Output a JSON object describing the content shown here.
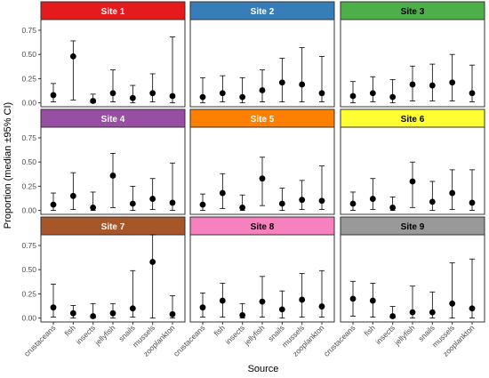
{
  "chart_data": {
    "type": "scatter",
    "layout": "facet-grid",
    "xlabel": "Source",
    "ylabel": "Proportion (median ±95% CI)",
    "categories": [
      "crustaceans",
      "fish",
      "insects",
      "jellyfish",
      "snails",
      "mussels",
      "zooplankton"
    ],
    "yticks": [
      "0.00",
      "0.25",
      "0.50",
      "0.75"
    ],
    "ylim": [
      -0.04,
      0.86
    ],
    "grid": false,
    "colors": {
      "point": "#000000",
      "panel_border": "#333333",
      "strip_border": "#333333",
      "tick": "#4d4d4d"
    },
    "panels": [
      {
        "title": "Site 1",
        "strip_color": "#E41A1C",
        "strip_text_color": "#ffffff",
        "median": [
          0.08,
          0.48,
          0.02,
          0.1,
          0.05,
          0.1,
          0.07
        ],
        "lower": [
          0.01,
          0.03,
          0.0,
          0.01,
          0.0,
          0.01,
          0.0
        ],
        "upper": [
          0.2,
          0.64,
          0.09,
          0.34,
          0.18,
          0.3,
          0.68
        ]
      },
      {
        "title": "Site 2",
        "strip_color": "#377EB8",
        "strip_text_color": "#ffffff",
        "median": [
          0.06,
          0.1,
          0.06,
          0.13,
          0.21,
          0.19,
          0.1
        ],
        "lower": [
          0.0,
          0.01,
          0.0,
          0.01,
          0.01,
          0.01,
          0.01
        ],
        "upper": [
          0.26,
          0.28,
          0.26,
          0.34,
          0.46,
          0.57,
          0.48
        ]
      },
      {
        "title": "Site 3",
        "strip_color": "#4DAF4A",
        "strip_text_color": "#000000",
        "median": [
          0.07,
          0.1,
          0.06,
          0.19,
          0.18,
          0.21,
          0.1
        ],
        "lower": [
          0.0,
          0.01,
          0.0,
          0.02,
          0.02,
          0.02,
          0.01
        ],
        "upper": [
          0.22,
          0.27,
          0.24,
          0.38,
          0.4,
          0.5,
          0.39
        ]
      },
      {
        "title": "Site 4",
        "strip_color": "#984EA3",
        "strip_text_color": "#ffffff",
        "median": [
          0.06,
          0.15,
          0.03,
          0.36,
          0.07,
          0.12,
          0.08
        ],
        "lower": [
          0.0,
          0.01,
          0.0,
          0.03,
          0.0,
          0.01,
          0.0
        ],
        "upper": [
          0.18,
          0.39,
          0.19,
          0.59,
          0.25,
          0.33,
          0.49
        ]
      },
      {
        "title": "Site 5",
        "strip_color": "#FF7F00",
        "strip_text_color": "#ffffff",
        "median": [
          0.06,
          0.18,
          0.03,
          0.33,
          0.07,
          0.11,
          0.1
        ],
        "lower": [
          0.0,
          0.02,
          0.0,
          0.05,
          0.0,
          0.01,
          0.01
        ],
        "upper": [
          0.17,
          0.38,
          0.16,
          0.55,
          0.23,
          0.31,
          0.46
        ]
      },
      {
        "title": "Site 6",
        "strip_color": "#FFFF33",
        "strip_text_color": "#000000",
        "median": [
          0.07,
          0.12,
          0.03,
          0.3,
          0.09,
          0.18,
          0.08
        ],
        "lower": [
          0.0,
          0.01,
          0.0,
          0.03,
          0.0,
          0.01,
          0.0
        ],
        "upper": [
          0.19,
          0.33,
          0.14,
          0.5,
          0.3,
          0.42,
          0.42
        ]
      },
      {
        "title": "Site 7",
        "strip_color": "#A65628",
        "strip_text_color": "#ffffff",
        "median": [
          0.11,
          0.05,
          0.02,
          0.05,
          0.1,
          0.58,
          0.04
        ],
        "lower": [
          0.01,
          0.0,
          0.0,
          0.0,
          0.01,
          0.0,
          0.0
        ],
        "upper": [
          0.35,
          0.13,
          0.15,
          0.15,
          0.49,
          0.86,
          0.23
        ]
      },
      {
        "title": "Site 8",
        "strip_color": "#F781BF",
        "strip_text_color": "#000000",
        "median": [
          0.11,
          0.18,
          0.03,
          0.17,
          0.09,
          0.19,
          0.12
        ],
        "lower": [
          0.01,
          0.01,
          0.0,
          0.01,
          0.0,
          0.01,
          0.01
        ],
        "upper": [
          0.26,
          0.36,
          0.15,
          0.43,
          0.28,
          0.46,
          0.49
        ]
      },
      {
        "title": "Site 9",
        "strip_color": "#999999",
        "strip_text_color": "#000000",
        "median": [
          0.2,
          0.18,
          0.02,
          0.06,
          0.06,
          0.15,
          0.1
        ],
        "lower": [
          0.02,
          0.01,
          0.0,
          0.0,
          0.0,
          0.0,
          0.0
        ],
        "upper": [
          0.38,
          0.36,
          0.12,
          0.33,
          0.27,
          0.57,
          0.61
        ]
      }
    ]
  }
}
